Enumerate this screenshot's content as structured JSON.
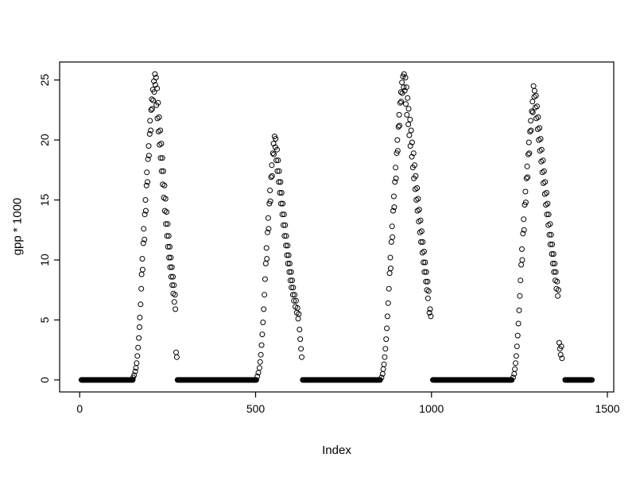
{
  "figure": {
    "background": "#ffffff"
  },
  "chart_data": {
    "type": "scatter",
    "title": "",
    "xlabel": "Index",
    "ylabel": "gpp * 1000",
    "xlim": [
      0,
      1500
    ],
    "ylim": [
      0,
      25.5
    ],
    "x_ticks": [
      0,
      500,
      1000,
      1500
    ],
    "y_ticks": [
      0,
      5,
      10,
      15,
      20,
      25
    ],
    "x_range": [
      -57,
      1518
    ],
    "y_range": [
      -1.0,
      26.5
    ],
    "grid": false,
    "legend": false,
    "marker": "open-circle",
    "marker_color": "#000000",
    "box_color": "#000000",
    "zero_step": 2,
    "zero_runs": [
      [
        5,
        152
      ],
      [
        278,
        502
      ],
      [
        634,
        854
      ],
      [
        1004,
        1228
      ],
      [
        1380,
        1456
      ]
    ],
    "points": [
      [
        152,
        0.2
      ],
      [
        155,
        0.4
      ],
      [
        158,
        0.7
      ],
      [
        160,
        1.0
      ],
      [
        162,
        1.4
      ],
      [
        164,
        2.0
      ],
      [
        166,
        2.7
      ],
      [
        168,
        3.5
      ],
      [
        170,
        4.4
      ],
      [
        171,
        5.2
      ],
      [
        173,
        6.3
      ],
      [
        175,
        7.6
      ],
      [
        176,
        8.8
      ],
      [
        178,
        10.1
      ],
      [
        179,
        9.2
      ],
      [
        181,
        11.4
      ],
      [
        182,
        12.6
      ],
      [
        184,
        11.7
      ],
      [
        185,
        13.8
      ],
      [
        187,
        15.0
      ],
      [
        188,
        14.1
      ],
      [
        190,
        16.2
      ],
      [
        191,
        17.3
      ],
      [
        193,
        16.5
      ],
      [
        194,
        18.4
      ],
      [
        196,
        19.5
      ],
      [
        197,
        18.7
      ],
      [
        199,
        20.5
      ],
      [
        200,
        21.6
      ],
      [
        202,
        20.8
      ],
      [
        203,
        22.5
      ],
      [
        205,
        23.4
      ],
      [
        206,
        22.6
      ],
      [
        208,
        24.2
      ],
      [
        209,
        23.3
      ],
      [
        211,
        24.9
      ],
      [
        212,
        24.0
      ],
      [
        214,
        25.5
      ],
      [
        215,
        24.6
      ],
      [
        217,
        25.2
      ],
      [
        218,
        22.9
      ],
      [
        220,
        24.3
      ],
      [
        221,
        21.8
      ],
      [
        223,
        23.1
      ],
      [
        224,
        20.7
      ],
      [
        226,
        21.9
      ],
      [
        227,
        19.6
      ],
      [
        229,
        20.8
      ],
      [
        230,
        18.5
      ],
      [
        232,
        19.7
      ],
      [
        233,
        17.4
      ],
      [
        235,
        18.5
      ],
      [
        236,
        16.3
      ],
      [
        238,
        17.4
      ],
      [
        239,
        15.2
      ],
      [
        241,
        16.2
      ],
      [
        242,
        14.1
      ],
      [
        244,
        15.1
      ],
      [
        245,
        13.0
      ],
      [
        247,
        14.0
      ],
      [
        248,
        12.0
      ],
      [
        250,
        13.0
      ],
      [
        251,
        11.1
      ],
      [
        253,
        12.0
      ],
      [
        254,
        10.2
      ],
      [
        256,
        11.1
      ],
      [
        257,
        9.4
      ],
      [
        259,
        10.2
      ],
      [
        260,
        8.6
      ],
      [
        262,
        9.4
      ],
      [
        263,
        7.9
      ],
      [
        265,
        8.6
      ],
      [
        266,
        7.2
      ],
      [
        268,
        7.9
      ],
      [
        269,
        6.5
      ],
      [
        271,
        7.1
      ],
      [
        272,
        5.9
      ],
      [
        274,
        2.3
      ],
      [
        276,
        1.9
      ],
      [
        505,
        0.3
      ],
      [
        508,
        0.6
      ],
      [
        511,
        1.0
      ],
      [
        513,
        1.5
      ],
      [
        515,
        2.1
      ],
      [
        517,
        2.9
      ],
      [
        519,
        3.8
      ],
      [
        521,
        4.8
      ],
      [
        523,
        5.9
      ],
      [
        525,
        7.1
      ],
      [
        527,
        8.4
      ],
      [
        529,
        9.7
      ],
      [
        531,
        11.0
      ],
      [
        532,
        10.1
      ],
      [
        534,
        12.3
      ],
      [
        536,
        13.5
      ],
      [
        537,
        12.6
      ],
      [
        539,
        14.7
      ],
      [
        541,
        15.8
      ],
      [
        542,
        14.9
      ],
      [
        544,
        16.9
      ],
      [
        546,
        17.9
      ],
      [
        547,
        17.0
      ],
      [
        549,
        18.9
      ],
      [
        551,
        19.7
      ],
      [
        552,
        18.8
      ],
      [
        554,
        20.3
      ],
      [
        556,
        19.4
      ],
      [
        557,
        20.1
      ],
      [
        559,
        18.3
      ],
      [
        561,
        19.2
      ],
      [
        562,
        17.4
      ],
      [
        564,
        18.3
      ],
      [
        566,
        16.5
      ],
      [
        567,
        17.4
      ],
      [
        569,
        15.6
      ],
      [
        571,
        16.5
      ],
      [
        572,
        14.7
      ],
      [
        574,
        15.6
      ],
      [
        576,
        13.8
      ],
      [
        577,
        14.7
      ],
      [
        579,
        12.9
      ],
      [
        581,
        13.8
      ],
      [
        582,
        12.0
      ],
      [
        584,
        12.9
      ],
      [
        586,
        11.2
      ],
      [
        587,
        12.0
      ],
      [
        589,
        10.4
      ],
      [
        591,
        11.2
      ],
      [
        592,
        9.7
      ],
      [
        594,
        10.4
      ],
      [
        596,
        9.0
      ],
      [
        597,
        9.7
      ],
      [
        599,
        8.3
      ],
      [
        601,
        9.0
      ],
      [
        602,
        7.7
      ],
      [
        604,
        8.3
      ],
      [
        606,
        7.1
      ],
      [
        607,
        7.7
      ],
      [
        609,
        6.6
      ],
      [
        611,
        7.1
      ],
      [
        613,
        6.1
      ],
      [
        615,
        6.6
      ],
      [
        617,
        5.6
      ],
      [
        619,
        6.0
      ],
      [
        621,
        5.1
      ],
      [
        623,
        5.5
      ],
      [
        625,
        4.2
      ],
      [
        627,
        3.4
      ],
      [
        629,
        2.6
      ],
      [
        631,
        1.9
      ],
      [
        858,
        0.2
      ],
      [
        861,
        0.5
      ],
      [
        863,
        0.9
      ],
      [
        865,
        1.3
      ],
      [
        867,
        1.9
      ],
      [
        869,
        2.6
      ],
      [
        871,
        3.4
      ],
      [
        873,
        4.3
      ],
      [
        875,
        5.3
      ],
      [
        877,
        6.4
      ],
      [
        879,
        7.6
      ],
      [
        881,
        8.9
      ],
      [
        883,
        10.2
      ],
      [
        884,
        9.3
      ],
      [
        886,
        11.5
      ],
      [
        888,
        12.8
      ],
      [
        889,
        11.9
      ],
      [
        891,
        14.1
      ],
      [
        893,
        15.3
      ],
      [
        894,
        14.4
      ],
      [
        896,
        16.5
      ],
      [
        898,
        17.7
      ],
      [
        899,
        16.8
      ],
      [
        901,
        18.9
      ],
      [
        903,
        20.0
      ],
      [
        904,
        19.1
      ],
      [
        906,
        21.1
      ],
      [
        908,
        22.1
      ],
      [
        909,
        21.2
      ],
      [
        911,
        23.1
      ],
      [
        913,
        24.0
      ],
      [
        914,
        23.2
      ],
      [
        916,
        24.8
      ],
      [
        917,
        23.9
      ],
      [
        919,
        25.3
      ],
      [
        921,
        24.4
      ],
      [
        922,
        25.5
      ],
      [
        924,
        24.1
      ],
      [
        926,
        25.2
      ],
      [
        927,
        23.0
      ],
      [
        929,
        24.4
      ],
      [
        930,
        22.1
      ],
      [
        932,
        23.5
      ],
      [
        934,
        21.3
      ],
      [
        935,
        22.6
      ],
      [
        937,
        20.4
      ],
      [
        939,
        21.7
      ],
      [
        940,
        19.5
      ],
      [
        942,
        20.8
      ],
      [
        944,
        18.6
      ],
      [
        945,
        19.8
      ],
      [
        947,
        17.7
      ],
      [
        949,
        18.9
      ],
      [
        950,
        16.8
      ],
      [
        952,
        17.9
      ],
      [
        954,
        15.9
      ],
      [
        955,
        17.0
      ],
      [
        957,
        15.0
      ],
      [
        959,
        16.0
      ],
      [
        960,
        14.1
      ],
      [
        962,
        15.1
      ],
      [
        964,
        13.2
      ],
      [
        965,
        14.2
      ],
      [
        967,
        12.3
      ],
      [
        969,
        13.3
      ],
      [
        970,
        11.5
      ],
      [
        972,
        12.4
      ],
      [
        974,
        10.6
      ],
      [
        975,
        11.5
      ],
      [
        977,
        9.8
      ],
      [
        979,
        10.7
      ],
      [
        980,
        9.0
      ],
      [
        982,
        9.8
      ],
      [
        984,
        8.2
      ],
      [
        985,
        9.0
      ],
      [
        987,
        7.5
      ],
      [
        989,
        8.2
      ],
      [
        990,
        6.8
      ],
      [
        992,
        7.4
      ],
      [
        994,
        5.6
      ],
      [
        996,
        5.9
      ],
      [
        998,
        5.3
      ],
      [
        1232,
        0.2
      ],
      [
        1235,
        0.5
      ],
      [
        1237,
        0.9
      ],
      [
        1239,
        1.4
      ],
      [
        1241,
        2.0
      ],
      [
        1243,
        2.8
      ],
      [
        1245,
        3.7
      ],
      [
        1247,
        4.7
      ],
      [
        1249,
        5.8
      ],
      [
        1251,
        7.0
      ],
      [
        1253,
        8.3
      ],
      [
        1255,
        9.6
      ],
      [
        1257,
        10.9
      ],
      [
        1258,
        10.0
      ],
      [
        1260,
        12.2
      ],
      [
        1262,
        13.4
      ],
      [
        1263,
        12.5
      ],
      [
        1265,
        14.6
      ],
      [
        1267,
        15.7
      ],
      [
        1268,
        14.8
      ],
      [
        1270,
        16.8
      ],
      [
        1272,
        17.8
      ],
      [
        1273,
        16.9
      ],
      [
        1275,
        18.8
      ],
      [
        1277,
        19.8
      ],
      [
        1278,
        18.9
      ],
      [
        1280,
        20.7
      ],
      [
        1282,
        21.6
      ],
      [
        1283,
        20.8
      ],
      [
        1285,
        22.4
      ],
      [
        1287,
        23.2
      ],
      [
        1288,
        22.3
      ],
      [
        1290,
        24.5
      ],
      [
        1292,
        23.6
      ],
      [
        1293,
        24.1
      ],
      [
        1295,
        22.7
      ],
      [
        1297,
        23.7
      ],
      [
        1298,
        21.8
      ],
      [
        1300,
        22.8
      ],
      [
        1302,
        20.9
      ],
      [
        1303,
        21.9
      ],
      [
        1305,
        20.0
      ],
      [
        1307,
        21.0
      ],
      [
        1308,
        19.1
      ],
      [
        1310,
        20.1
      ],
      [
        1312,
        18.2
      ],
      [
        1313,
        19.2
      ],
      [
        1315,
        17.3
      ],
      [
        1317,
        18.3
      ],
      [
        1318,
        16.4
      ],
      [
        1320,
        17.4
      ],
      [
        1322,
        15.5
      ],
      [
        1323,
        16.5
      ],
      [
        1325,
        14.6
      ],
      [
        1327,
        15.6
      ],
      [
        1328,
        13.8
      ],
      [
        1330,
        14.7
      ],
      [
        1332,
        12.9
      ],
      [
        1333,
        13.8
      ],
      [
        1335,
        12.1
      ],
      [
        1337,
        13.0
      ],
      [
        1338,
        11.3
      ],
      [
        1340,
        12.1
      ],
      [
        1342,
        10.5
      ],
      [
        1343,
        11.3
      ],
      [
        1345,
        9.7
      ],
      [
        1347,
        10.5
      ],
      [
        1348,
        9.0
      ],
      [
        1350,
        9.7
      ],
      [
        1352,
        8.3
      ],
      [
        1353,
        9.0
      ],
      [
        1355,
        7.6
      ],
      [
        1357,
        8.2
      ],
      [
        1359,
        7.0
      ],
      [
        1361,
        7.5
      ],
      [
        1363,
        3.1
      ],
      [
        1365,
        2.6
      ],
      [
        1367,
        2.1
      ],
      [
        1369,
        2.8
      ],
      [
        1371,
        1.8
      ]
    ]
  }
}
